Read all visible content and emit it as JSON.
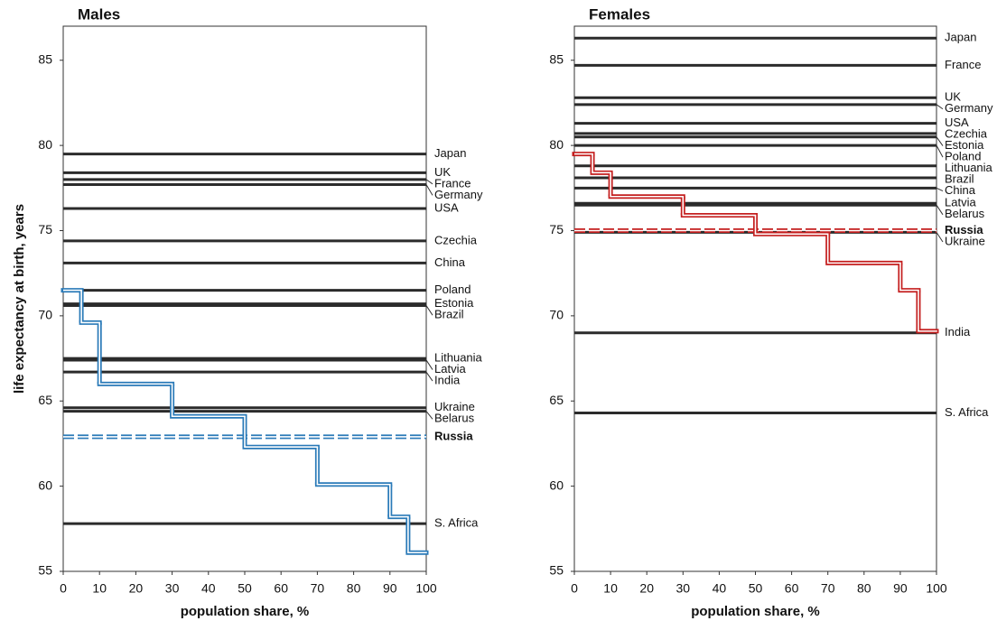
{
  "chart_data": [
    {
      "type": "step",
      "title": "Males",
      "xlabel": "population share, %",
      "ylabel": "life expectancy at birth, years",
      "xlim": [
        0,
        100
      ],
      "xticks": [
        0,
        10,
        20,
        30,
        40,
        50,
        60,
        70,
        80,
        90,
        100
      ],
      "ylim": [
        55,
        87
      ],
      "yticks": [
        55,
        60,
        65,
        70,
        75,
        80,
        85
      ],
      "step": {
        "color": "#2a7ab8",
        "bins": [
          0,
          5,
          10,
          30,
          50,
          70,
          90,
          95,
          100
        ],
        "values": [
          71.5,
          69.6,
          66.0,
          64.1,
          62.3,
          60.1,
          58.2,
          56.1
        ]
      },
      "highlight": {
        "name": "Russia",
        "value": 62.9,
        "color": "#2a7ab8",
        "style": "dashed"
      },
      "reference_color": "#2b2b2b",
      "reference_lines": [
        {
          "name": "Japan",
          "value": 79.5
        },
        {
          "name": "UK",
          "value": 78.4
        },
        {
          "name": "France",
          "value": 78.0
        },
        {
          "name": "Germany",
          "value": 77.7
        },
        {
          "name": "USA",
          "value": 76.3
        },
        {
          "name": "Czechia",
          "value": 74.4
        },
        {
          "name": "China",
          "value": 73.1
        },
        {
          "name": "Poland",
          "value": 71.5
        },
        {
          "name": "Estonia",
          "value": 70.7
        },
        {
          "name": "Brazil",
          "value": 70.6
        },
        {
          "name": "Lithuania",
          "value": 67.5
        },
        {
          "name": "Latvia",
          "value": 67.4
        },
        {
          "name": "India",
          "value": 66.7
        },
        {
          "name": "Ukraine",
          "value": 64.6
        },
        {
          "name": "Belarus",
          "value": 64.4
        },
        {
          "name": "S. Africa",
          "value": 57.8
        }
      ]
    },
    {
      "type": "step",
      "title": "Females",
      "xlabel": "population share, %",
      "xlim": [
        0,
        100
      ],
      "xticks": [
        0,
        10,
        20,
        30,
        40,
        50,
        60,
        70,
        80,
        90,
        100
      ],
      "ylim": [
        55,
        87
      ],
      "yticks": [
        55,
        60,
        65,
        70,
        75,
        80,
        85
      ],
      "step": {
        "color": "#c41e1e",
        "bins": [
          0,
          5,
          10,
          30,
          50,
          70,
          90,
          95,
          100
        ],
        "values": [
          79.5,
          78.4,
          77.0,
          75.9,
          74.8,
          73.1,
          71.5,
          69.1
        ]
      },
      "highlight": {
        "name": "Russia",
        "value": 75.0,
        "color": "#c41e1e",
        "style": "dashed"
      },
      "reference_color": "#2b2b2b",
      "reference_lines": [
        {
          "name": "Japan",
          "value": 86.3
        },
        {
          "name": "France",
          "value": 84.7
        },
        {
          "name": "UK",
          "value": 82.8
        },
        {
          "name": "Germany",
          "value": 82.4
        },
        {
          "name": "USA",
          "value": 81.3
        },
        {
          "name": "Czechia",
          "value": 80.7
        },
        {
          "name": "Estonia",
          "value": 80.5
        },
        {
          "name": "Poland",
          "value": 80.0
        },
        {
          "name": "Lithuania",
          "value": 78.8
        },
        {
          "name": "Brazil",
          "value": 78.1
        },
        {
          "name": "China",
          "value": 77.5
        },
        {
          "name": "Latvia",
          "value": 76.6
        },
        {
          "name": "Belarus",
          "value": 76.5
        },
        {
          "name": "Ukraine",
          "value": 74.9
        },
        {
          "name": "India",
          "value": 69.0
        },
        {
          "name": "S. Africa",
          "value": 64.3
        }
      ]
    }
  ]
}
